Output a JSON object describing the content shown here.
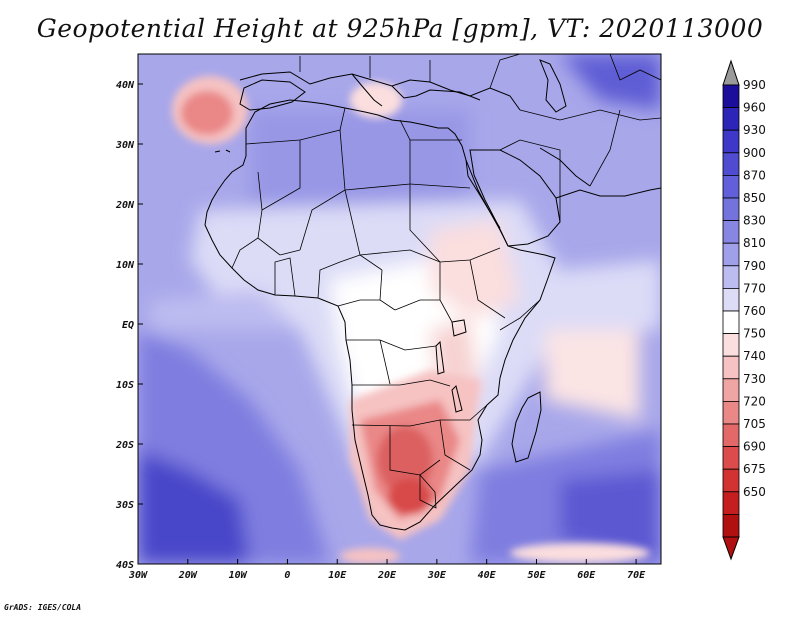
{
  "title": "Geopotential Height at 925hPa [gpm], VT: 2020113000",
  "credit": "GrADS: IGES/COLA",
  "map": {
    "lon_range": [
      -30,
      75
    ],
    "lat_range": [
      -40,
      45
    ],
    "lon_ticks": [
      {
        "value": -30,
        "label": "30W"
      },
      {
        "value": -20,
        "label": "20W"
      },
      {
        "value": -10,
        "label": "10W"
      },
      {
        "value": 0,
        "label": "0"
      },
      {
        "value": 10,
        "label": "10E"
      },
      {
        "value": 20,
        "label": "20E"
      },
      {
        "value": 30,
        "label": "30E"
      },
      {
        "value": 40,
        "label": "40E"
      },
      {
        "value": 50,
        "label": "50E"
      },
      {
        "value": 60,
        "label": "60E"
      },
      {
        "value": 70,
        "label": "70E"
      }
    ],
    "lat_ticks": [
      {
        "value": 40,
        "label": "40N"
      },
      {
        "value": 30,
        "label": "30N"
      },
      {
        "value": 20,
        "label": "20N"
      },
      {
        "value": 10,
        "label": "10N"
      },
      {
        "value": 0,
        "label": "EQ"
      },
      {
        "value": -10,
        "label": "10S"
      },
      {
        "value": -20,
        "label": "20S"
      },
      {
        "value": -30,
        "label": "30S"
      },
      {
        "value": -40,
        "label": "40S"
      }
    ],
    "colorbar": {
      "levels": [
        990,
        960,
        930,
        900,
        870,
        850,
        830,
        810,
        790,
        770,
        760,
        750,
        740,
        730,
        720,
        705,
        690,
        675,
        650
      ],
      "colors": [
        "#1a0e9a",
        "#2c25b8",
        "#3d38c8",
        "#4f4cd2",
        "#615fd9",
        "#7473de",
        "#8786e3",
        "#a09fe9",
        "#bdbcf0",
        "#dcdcf7",
        "#ffffff",
        "#fbdede",
        "#f6c2c2",
        "#f0a5a5",
        "#ea8787",
        "#e36969",
        "#dc4c4c",
        "#d33232",
        "#c41e1e",
        "#b11010"
      ],
      "top_arrow_color": "#9a9a9a"
    },
    "features": [
      {
        "name": "high-cell-azores",
        "lon": -15,
        "lat": 36,
        "value": 710
      },
      {
        "name": "high-cell-mediterranean",
        "lon": 14,
        "lat": 37,
        "value": 760
      },
      {
        "name": "high-cell-east-africa",
        "lon": 40,
        "lat": 9,
        "value": 765
      },
      {
        "name": "high-cell-congo",
        "lon": 24,
        "lat": -3,
        "value": 770
      },
      {
        "name": "high-cell-indian-ocean",
        "lon": 62,
        "lat": -9,
        "value": 750
      },
      {
        "name": "low-cell-southern-africa",
        "lon": 24,
        "lat": -25,
        "value": 700
      },
      {
        "name": "low-cell-cape",
        "lon": 27,
        "lat": -34,
        "value": 735
      },
      {
        "name": "high-band-south",
        "lon": 60,
        "lat": -40,
        "value": 745
      }
    ]
  }
}
